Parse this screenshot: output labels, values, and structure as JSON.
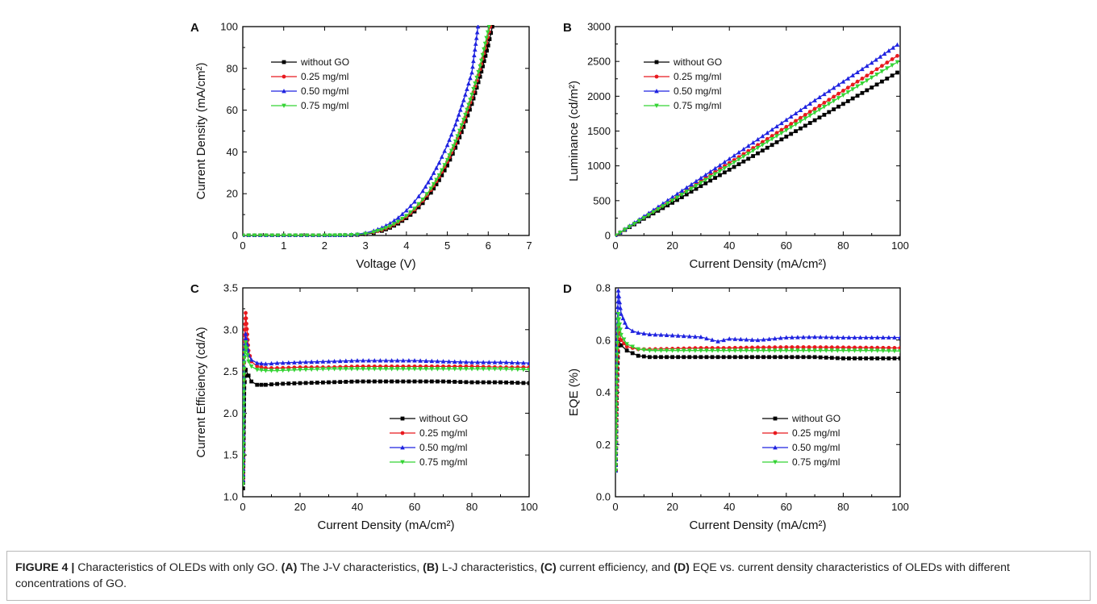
{
  "figure": {
    "caption": {
      "label": "FIGURE 4 |",
      "t1": " Characteristics of OLEDs with only GO. ",
      "a": "(A)",
      "t2": " The J-V characteristics, ",
      "b": "(B)",
      "t3": " L-J characteristics, ",
      "c": "(C)",
      "t4": " current efficiency, and ",
      "d": "(D)",
      "t5": " EQE vs. current density characteristics of OLEDs with different concentrations of GO."
    }
  },
  "colors": {
    "without_GO": "#000000",
    "c025": "#e8191f",
    "c050": "#1f23e0",
    "c075": "#35d435"
  },
  "chart_data": [
    {
      "panel_letter": "A",
      "type": "line",
      "xlabel": "Voltage (V)",
      "ylabel": "Current Density (mA/cm²)",
      "xlim": [
        0,
        7
      ],
      "ylim": [
        0,
        100
      ],
      "xticks": [
        0,
        1,
        2,
        3,
        4,
        5,
        6,
        7
      ],
      "yticks": [
        0,
        20,
        40,
        60,
        80,
        100
      ],
      "legend_position": "top-left",
      "series": [
        {
          "name": "without  GO",
          "color": "#000000",
          "marker": "square",
          "x": [
            0,
            1,
            2,
            2.5,
            2.8,
            3,
            3.2,
            3.4,
            3.6,
            3.8,
            4,
            4.2,
            4.4,
            4.6,
            4.8,
            5,
            5.2,
            5.4,
            5.6,
            5.8,
            6,
            6.1
          ],
          "y": [
            0,
            0,
            0,
            0.1,
            0.3,
            0.6,
            1.2,
            2.2,
            3.7,
            5.7,
            8.3,
            11.5,
            15.5,
            20.5,
            26.5,
            33.5,
            42,
            52,
            63,
            76,
            91,
            100
          ]
        },
        {
          "name": "0.25 mg/ml",
          "color": "#e8191f",
          "marker": "circle",
          "x": [
            0,
            1,
            2,
            2.5,
            2.8,
            3,
            3.2,
            3.4,
            3.6,
            3.8,
            4,
            4.2,
            4.4,
            4.6,
            4.8,
            5,
            5.2,
            5.4,
            5.6,
            5.8,
            6.05
          ],
          "y": [
            0,
            0,
            0,
            0.1,
            0.4,
            0.8,
            1.5,
            2.6,
            4.2,
            6.3,
            9,
            12.4,
            16.6,
            21.8,
            28,
            35.3,
            44,
            54.3,
            66,
            79.5,
            100
          ]
        },
        {
          "name": "0.50 mg/ml",
          "color": "#1f23e0",
          "marker": "triangle",
          "x": [
            0,
            1,
            2,
            2.5,
            2.8,
            3,
            3.2,
            3.4,
            3.6,
            3.8,
            4,
            4.2,
            4.4,
            4.6,
            4.8,
            5,
            5.2,
            5.4,
            5.6,
            5.75
          ],
          "y": [
            0,
            0,
            0,
            0.2,
            0.6,
            1.2,
            2.2,
            3.7,
            5.8,
            8.5,
            12,
            16.2,
            21.3,
            27.5,
            34.8,
            43.3,
            53.2,
            64.8,
            78,
            100
          ]
        },
        {
          "name": "0.75 mg/ml",
          "color": "#35d435",
          "marker": "triangle-down",
          "x": [
            0,
            1,
            2,
            2.5,
            2.8,
            3,
            3.2,
            3.4,
            3.6,
            3.8,
            4,
            4.2,
            4.4,
            4.6,
            4.8,
            5,
            5.2,
            5.4,
            5.6,
            5.8,
            6.02
          ],
          "y": [
            0,
            0,
            0,
            0.1,
            0.4,
            0.8,
            1.6,
            2.8,
            4.4,
            6.6,
            9.4,
            12.9,
            17.2,
            22.5,
            28.8,
            36.2,
            45,
            55.4,
            67.4,
            81,
            100
          ]
        }
      ]
    },
    {
      "panel_letter": "B",
      "type": "line",
      "xlabel": "Current Density (mA/cm²)",
      "ylabel": "Luminance (cd/m²)",
      "xlim": [
        0,
        100
      ],
      "ylim": [
        0,
        3000
      ],
      "xticks": [
        0,
        20,
        40,
        60,
        80,
        100
      ],
      "yticks": [
        0,
        500,
        1000,
        1500,
        2000,
        2500,
        3000
      ],
      "legend_position": "top-left",
      "series": [
        {
          "name": "without  GO",
          "color": "#000000",
          "marker": "square",
          "x": [
            0,
            10,
            20,
            30,
            40,
            50,
            60,
            70,
            80,
            90,
            99
          ],
          "y": [
            0,
            240,
            470,
            710,
            945,
            1180,
            1420,
            1655,
            1890,
            2125,
            2340
          ]
        },
        {
          "name": "0.25 mg/ml",
          "color": "#e8191f",
          "marker": "circle",
          "x": [
            0,
            10,
            20,
            30,
            40,
            50,
            60,
            70,
            80,
            90,
            99
          ],
          "y": [
            0,
            260,
            520,
            780,
            1040,
            1300,
            1560,
            1820,
            2080,
            2340,
            2580
          ]
        },
        {
          "name": "0.50 mg/ml",
          "color": "#1f23e0",
          "marker": "triangle",
          "x": [
            0,
            10,
            20,
            30,
            40,
            50,
            60,
            70,
            80,
            90,
            99
          ],
          "y": [
            0,
            275,
            550,
            825,
            1100,
            1380,
            1660,
            1940,
            2210,
            2480,
            2740
          ]
        },
        {
          "name": "0.75 mg/ml",
          "color": "#35d435",
          "marker": "triangle-down",
          "x": [
            0,
            10,
            20,
            30,
            40,
            50,
            60,
            70,
            80,
            90,
            99
          ],
          "y": [
            0,
            252,
            504,
            756,
            1008,
            1260,
            1512,
            1764,
            2016,
            2268,
            2490
          ]
        }
      ]
    },
    {
      "panel_letter": "C",
      "type": "line",
      "xlabel": "Current Density (mA/cm²)",
      "ylabel": "Current Efficiency (cd/A)",
      "xlim": [
        0,
        100
      ],
      "ylim": [
        1.0,
        3.5
      ],
      "xticks": [
        0,
        20,
        40,
        60,
        80,
        100
      ],
      "yticks": [
        1.0,
        1.5,
        2.0,
        2.5,
        3.0,
        3.5
      ],
      "legend_position": "bottom-right",
      "series": [
        {
          "name": "without  GO",
          "color": "#000000",
          "marker": "square",
          "x": [
            0.1,
            0.5,
            1,
            2,
            3,
            5,
            8,
            12,
            20,
            30,
            40,
            50,
            60,
            70,
            80,
            90,
            100
          ],
          "y": [
            1.1,
            2.3,
            2.52,
            2.45,
            2.38,
            2.34,
            2.34,
            2.35,
            2.36,
            2.37,
            2.38,
            2.38,
            2.38,
            2.38,
            2.37,
            2.37,
            2.36
          ]
        },
        {
          "name": "0.25 mg/ml",
          "color": "#e8191f",
          "marker": "circle",
          "x": [
            0.1,
            0.5,
            1,
            2,
            3,
            5,
            8,
            12,
            20,
            30,
            40,
            50,
            60,
            70,
            80,
            90,
            100
          ],
          "y": [
            1.2,
            2.8,
            3.2,
            2.75,
            2.62,
            2.56,
            2.54,
            2.54,
            2.55,
            2.55,
            2.56,
            2.56,
            2.56,
            2.56,
            2.56,
            2.55,
            2.55
          ]
        },
        {
          "name": "0.50 mg/ml",
          "color": "#1f23e0",
          "marker": "triangle",
          "x": [
            0.1,
            0.5,
            1,
            2,
            3,
            5,
            8,
            12,
            20,
            30,
            40,
            50,
            60,
            70,
            80,
            90,
            100
          ],
          "y": [
            1.2,
            2.7,
            2.95,
            2.7,
            2.64,
            2.6,
            2.59,
            2.6,
            2.61,
            2.62,
            2.63,
            2.63,
            2.63,
            2.62,
            2.61,
            2.61,
            2.6
          ]
        },
        {
          "name": "0.75 mg/ml",
          "color": "#35d435",
          "marker": "triangle-down",
          "x": [
            0.1,
            0.5,
            1,
            2,
            3,
            5,
            8,
            12,
            20,
            30,
            40,
            50,
            60,
            70,
            80,
            90,
            100
          ],
          "y": [
            1.15,
            2.6,
            2.85,
            2.62,
            2.56,
            2.52,
            2.51,
            2.51,
            2.52,
            2.53,
            2.53,
            2.53,
            2.53,
            2.53,
            2.53,
            2.53,
            2.52
          ]
        }
      ]
    },
    {
      "panel_letter": "D",
      "type": "line",
      "xlabel": "Current Density (mA/cm²)",
      "ylabel": "EQE (%)",
      "xlim": [
        0,
        100
      ],
      "ylim": [
        0.0,
        0.8
      ],
      "xticks": [
        0,
        20,
        40,
        60,
        80,
        100
      ],
      "yticks": [
        0.0,
        0.2,
        0.4,
        0.6,
        0.8
      ],
      "legend_position": "bottom-right",
      "series": [
        {
          "name": "without  GO",
          "color": "#000000",
          "marker": "square",
          "x": [
            0.1,
            0.5,
            1,
            2,
            4,
            6,
            8,
            12,
            20,
            30,
            40,
            50,
            60,
            70,
            80,
            90,
            100
          ],
          "y": [
            0.1,
            0.4,
            0.6,
            0.58,
            0.56,
            0.55,
            0.54,
            0.535,
            0.535,
            0.535,
            0.535,
            0.535,
            0.535,
            0.535,
            0.53,
            0.53,
            0.53
          ]
        },
        {
          "name": "0.25 mg/ml",
          "color": "#e8191f",
          "marker": "circle",
          "x": [
            0.1,
            0.5,
            1,
            2,
            4,
            6,
            8,
            12,
            20,
            30,
            40,
            50,
            60,
            70,
            80,
            90,
            100
          ],
          "y": [
            0.1,
            0.45,
            0.65,
            0.6,
            0.575,
            0.57,
            0.565,
            0.565,
            0.567,
            0.57,
            0.57,
            0.572,
            0.573,
            0.573,
            0.572,
            0.571,
            0.57
          ]
        },
        {
          "name": "0.50 mg/ml",
          "color": "#1f23e0",
          "marker": "triangle",
          "x": [
            0.1,
            0.5,
            1,
            2,
            4,
            6,
            8,
            12,
            20,
            30,
            36,
            40,
            50,
            60,
            70,
            80,
            90,
            100
          ],
          "y": [
            0.1,
            0.6,
            0.79,
            0.7,
            0.65,
            0.635,
            0.628,
            0.622,
            0.618,
            0.612,
            0.595,
            0.605,
            0.6,
            0.61,
            0.612,
            0.61,
            0.61,
            0.61
          ]
        },
        {
          "name": "0.75 mg/ml",
          "color": "#35d435",
          "marker": "triangle-down",
          "x": [
            0.1,
            0.5,
            1,
            2,
            4,
            6,
            8,
            12,
            20,
            30,
            40,
            50,
            60,
            70,
            80,
            90,
            100
          ],
          "y": [
            0.1,
            0.5,
            0.7,
            0.62,
            0.585,
            0.575,
            0.565,
            0.56,
            0.56,
            0.56,
            0.56,
            0.56,
            0.56,
            0.56,
            0.56,
            0.56,
            0.558
          ]
        }
      ]
    }
  ]
}
